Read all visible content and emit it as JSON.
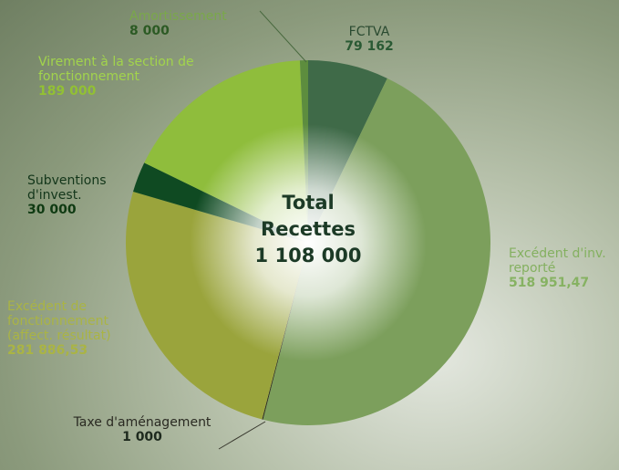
{
  "chart_data": {
    "type": "pie",
    "categories": [
      "FCTVA",
      "Excédent d'inv. reporté",
      "Taxe d'aménagement",
      "Excédent de fonctionnement (affect. résultat)",
      "Subventions d'invest.",
      "Virement à la section de fonctionnement",
      "Amortissement"
    ],
    "values": [
      79162,
      518951.47,
      1000,
      281886.53,
      30000,
      189000,
      8000
    ],
    "value_labels": [
      "79 162",
      "518 951,47",
      "1 000",
      "281 886,53",
      "30 000",
      "189 000",
      "8 000"
    ],
    "colors": [
      "#3f6a48",
      "#7c9f5c",
      "#2a2a1c",
      "#9aa43c",
      "#0f4a22",
      "#8fbd3c",
      "#5d8d3e"
    ],
    "label_colors": [
      "#2a4a30",
      "#84b060",
      "#2a2a22",
      "#aab444",
      "#13361a",
      "#a2d44c",
      "#7aa84a"
    ],
    "value_colors": [
      "#2a5a34",
      "#86b262",
      "#1e2a1e",
      "#aab444",
      "#0f3a12",
      "#92c034",
      "#2c5a24"
    ],
    "center_text": [
      "Total",
      "Recettes",
      "1 108 000"
    ]
  }
}
